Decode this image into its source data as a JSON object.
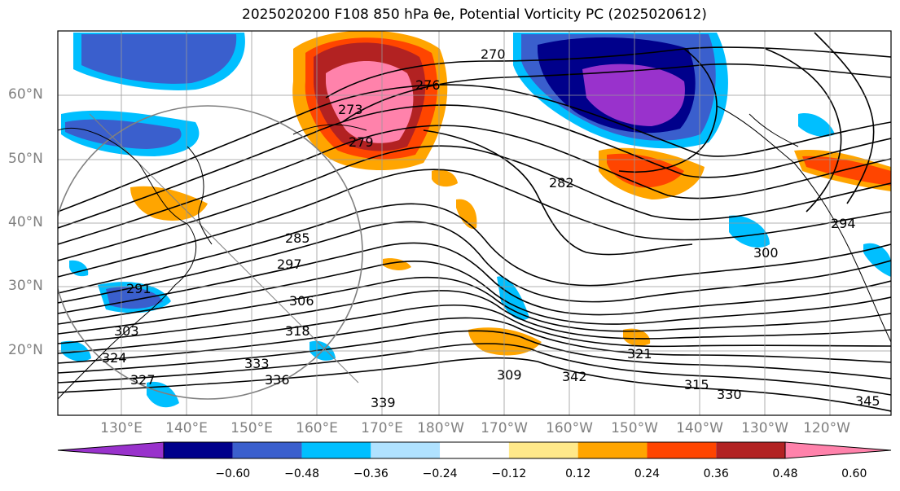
{
  "title": "2025020200 F108 850 hPa θe, Potential Vorticity PC (2025020612)",
  "lat_labels": [
    "60°N",
    "50°N",
    "40°N",
    "30°N",
    "20°N"
  ],
  "lon_labels": [
    "130°E",
    "140°E",
    "150°E",
    "160°E",
    "170°E",
    "180°W",
    "170°W",
    "160°W",
    "150°W",
    "140°W",
    "130°W",
    "120°W"
  ],
  "colorbar": {
    "colors": [
      "#9932cc",
      "#00008b",
      "#3a5fcd",
      "#00bfff",
      "#b0e2ff",
      "#ffffff",
      "#ffe98a",
      "#ffa500",
      "#ff4500",
      "#b22222",
      "#ff82ab"
    ],
    "tick_labels": [
      "−0.60",
      "−0.48",
      "−0.36",
      "−0.24",
      "−0.12",
      "0.12",
      "0.24",
      "0.36",
      "0.48",
      "0.60"
    ]
  },
  "contour_labels": [
    "270",
    "273",
    "276",
    "279",
    "282",
    "285",
    "291",
    "294",
    "297",
    "300",
    "303",
    "306",
    "309",
    "315",
    "318",
    "321",
    "324",
    "327",
    "330",
    "333",
    "336",
    "339",
    "342",
    "345"
  ]
}
